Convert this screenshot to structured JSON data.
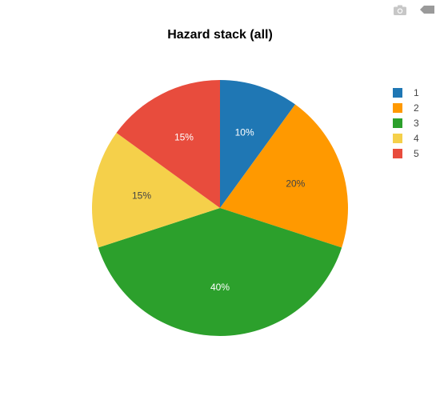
{
  "title": "Hazard stack (all)",
  "icons": {
    "camera": "camera-icon",
    "plotly": "plotly-logo-icon"
  },
  "chart_data": {
    "type": "pie",
    "title": "Hazard stack (all)",
    "categories": [
      "1",
      "2",
      "3",
      "4",
      "5"
    ],
    "values": [
      10,
      20,
      40,
      15,
      15
    ],
    "labels": [
      "10%",
      "20%",
      "40%",
      "15%",
      "15%"
    ],
    "colors": [
      "#1f77b4",
      "#ff9900",
      "#2ca02c",
      "#f5d04a",
      "#e84c3d"
    ],
    "label_colors": [
      "#ffffff",
      "#444444",
      "#ffffff",
      "#444444",
      "#ffffff"
    ],
    "direction": "clockwise",
    "start_angle": "top",
    "legend": "top-right"
  }
}
